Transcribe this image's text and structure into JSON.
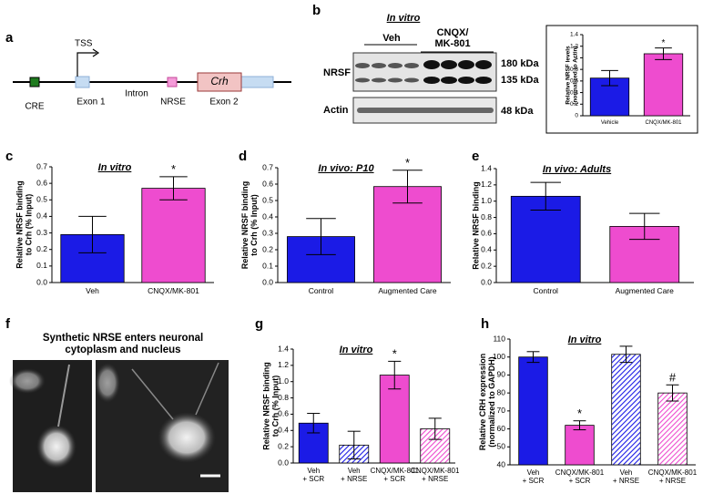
{
  "panel_labels": [
    "a",
    "b",
    "c",
    "d",
    "e",
    "f",
    "g",
    "h"
  ],
  "diagram": {
    "tss": "TSS",
    "cre": "CRE",
    "exon1": "Exon 1",
    "intron": "Intron",
    "nrse": "NRSE",
    "crh": "Crh",
    "exon2": "Exon 2"
  },
  "blot": {
    "title": "In vitro",
    "veh": "Veh",
    "treatment": "CNQX/\nMK-801",
    "nrsf": "NRSF",
    "actin": "Actin",
    "kda180": "180 kDa",
    "kda135": "135 kDa",
    "kda48": "48 kDa"
  },
  "micrograph": {
    "title": "Synthetic NRSE enters neuronal\ncytoplasm and nucleus"
  },
  "chart_data": [
    {
      "type": "bar",
      "ylabel": "Relative NRSF levels\n(normalized to Actin)",
      "categories": [
        "Vehicle",
        "CNQX/MK-801"
      ],
      "values": [
        0.65,
        1.07
      ],
      "errors": [
        0.13,
        0.1
      ],
      "colors": [
        "#1b1be6",
        "#ee4ccf"
      ],
      "hatched": [
        false,
        false
      ],
      "significance": [
        null,
        "*"
      ],
      "ylim": [
        0,
        1.4
      ],
      "yticks": [
        0,
        0.2,
        0.4,
        0.6,
        0.8,
        1,
        1.2,
        1.4
      ]
    },
    {
      "type": "bar",
      "title": "In vitro",
      "ylabel": "Relative NRSF binding\nto Crh (% Input)",
      "categories": [
        "Veh",
        "CNQX/MK-801"
      ],
      "values": [
        0.29,
        0.57
      ],
      "errors": [
        0.11,
        0.07
      ],
      "colors": [
        "#1b1be6",
        "#ee4ccf"
      ],
      "hatched": [
        false,
        false
      ],
      "significance": [
        null,
        "*"
      ],
      "ylim": [
        0,
        0.7
      ],
      "yticks": [
        {
          "value": 0,
          "label": "0.0"
        },
        0.1,
        0.2,
        0.3,
        0.4,
        0.5,
        0.6,
        0.7
      ]
    },
    {
      "type": "bar",
      "title": "In vivo: P10",
      "ylabel": "Relative NRSF binding\nto Crh (% Input)",
      "categories": [
        "Control",
        "Augmented Care"
      ],
      "values": [
        0.28,
        0.585
      ],
      "errors": [
        0.11,
        0.1
      ],
      "colors": [
        "#1b1be6",
        "#ee4ccf"
      ],
      "hatched": [
        false,
        false
      ],
      "significance": [
        null,
        "*"
      ],
      "ylim": [
        0,
        0.7
      ],
      "yticks": [
        {
          "value": 0,
          "label": "0.0"
        },
        0.1,
        0.2,
        0.3,
        0.4,
        0.5,
        0.6,
        0.7
      ]
    },
    {
      "type": "bar",
      "title": "In vivo: Adults",
      "ylabel": "Relative NRSF binding",
      "categories": [
        "Control",
        "Augmented Care"
      ],
      "values": [
        1.06,
        0.69
      ],
      "errors": [
        0.17,
        0.16
      ],
      "colors": [
        "#1b1be6",
        "#ee4ccf"
      ],
      "hatched": [
        false,
        false
      ],
      "significance": [
        null,
        null
      ],
      "ylim": [
        0,
        1.4
      ],
      "yticks": [
        {
          "value": 0,
          "label": "0.0"
        },
        0.2,
        0.4,
        0.6,
        0.8,
        {
          "value": 1,
          "label": "1.0"
        },
        1.2,
        1.4
      ]
    },
    {
      "type": "bar",
      "title": "In vitro",
      "ylabel": "Relative NRSF binding\nto Crh (% Input)",
      "categories": [
        "Veh\n+ SCR",
        "Veh\n+ NRSE",
        "CNQX/MK-801\n+ SCR",
        "CNQX/MK-801\n+ NRSE"
      ],
      "values": [
        0.49,
        0.22,
        1.08,
        0.42
      ],
      "errors": [
        0.12,
        0.17,
        0.17,
        0.13
      ],
      "colors": [
        "#1b1be6",
        "#1b1be6",
        "#ee4ccf",
        "#ee4ccf"
      ],
      "hatched": [
        false,
        true,
        false,
        true
      ],
      "significance": [
        null,
        null,
        "*",
        null
      ],
      "ylim": [
        0,
        1.4
      ],
      "yticks": [
        {
          "value": 0,
          "label": "0.0"
        },
        0.2,
        0.4,
        0.6,
        0.8,
        {
          "value": 1,
          "label": "1.0"
        },
        1.2,
        1.4
      ]
    },
    {
      "type": "bar",
      "title": "In vitro",
      "ylabel": "Relative CRH expression\n(normalized to GAPDH)",
      "categories": [
        "Veh\n+ SCR",
        "CNQX/MK-801\n+ SCR",
        "Veh\n+ NRSE",
        "CNQX/MK-801\n+ NRSE"
      ],
      "values": [
        100,
        62,
        101.5,
        80
      ],
      "errors": [
        3,
        2.5,
        4.5,
        4.5
      ],
      "colors": [
        "#1b1be6",
        "#ee4ccf",
        "#1b1be6",
        "#ee4ccf"
      ],
      "hatched": [
        false,
        false,
        true,
        true
      ],
      "significance": [
        null,
        "*",
        null,
        "#"
      ],
      "ylim": [
        40,
        110
      ],
      "yticks": [
        40,
        50,
        60,
        70,
        80,
        90,
        100,
        110
      ]
    }
  ]
}
